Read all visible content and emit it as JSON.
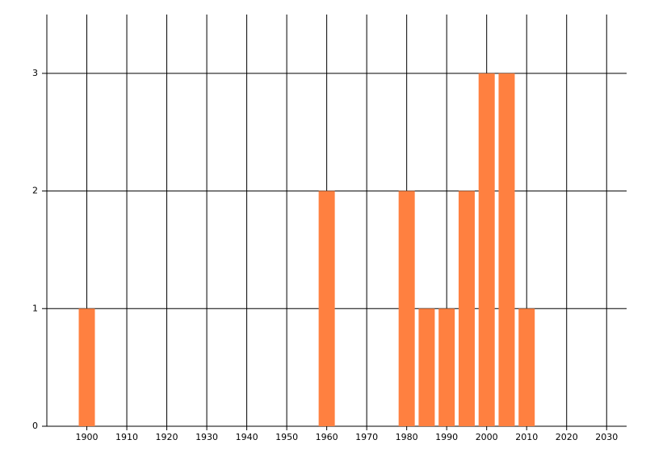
{
  "chart_data": {
    "type": "bar",
    "x": [
      1900,
      1960,
      1980,
      1985,
      1990,
      1995,
      2000,
      2005,
      2010
    ],
    "values": [
      1,
      2,
      2,
      1,
      1,
      2,
      3,
      3,
      1
    ],
    "color": "#ff8040",
    "xlim": [
      1890,
      2035
    ],
    "xticks": [
      1900,
      1910,
      1920,
      1930,
      1940,
      1950,
      1960,
      1970,
      1980,
      1990,
      2000,
      2010,
      2020,
      2030
    ],
    "ylim": [
      0,
      3.5
    ],
    "yticks": [
      0,
      1,
      2,
      3
    ],
    "grid": true
  }
}
